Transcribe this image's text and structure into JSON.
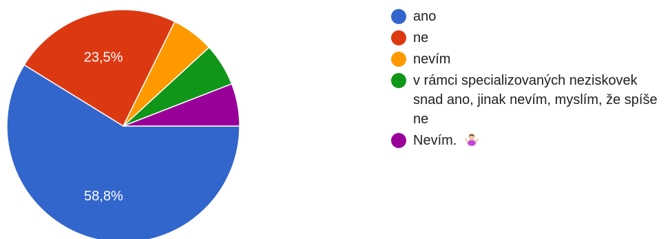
{
  "chart_data": {
    "type": "pie",
    "categories": [
      "ano",
      "ne",
      "nevím",
      "v rámci specializovaných neziskovek snad ano, jinak nevím, myslím, že spíše ne",
      "Nevím."
    ],
    "values": [
      58.8,
      23.5,
      5.9,
      5.9,
      5.9
    ],
    "slice_labels": [
      "58,8%",
      "23,5%",
      "",
      "",
      ""
    ],
    "colors": [
      "#3366cc",
      "#dc3912",
      "#ff9900",
      "#109618",
      "#990099"
    ],
    "legend_position": "right"
  },
  "legend": {
    "items": [
      {
        "label": "ano",
        "color": "#3366cc"
      },
      {
        "label": "ne",
        "color": "#dc3912"
      },
      {
        "label": "nevím",
        "color": "#ff9900"
      },
      {
        "label": "v rámci specializovaných neziskovek snad ano, jinak nevím, myslím, že spíše ne",
        "color": "#109618"
      },
      {
        "label": "Nevím.",
        "color": "#990099",
        "icon": "woman-shrugging-emoji-icon"
      }
    ]
  }
}
